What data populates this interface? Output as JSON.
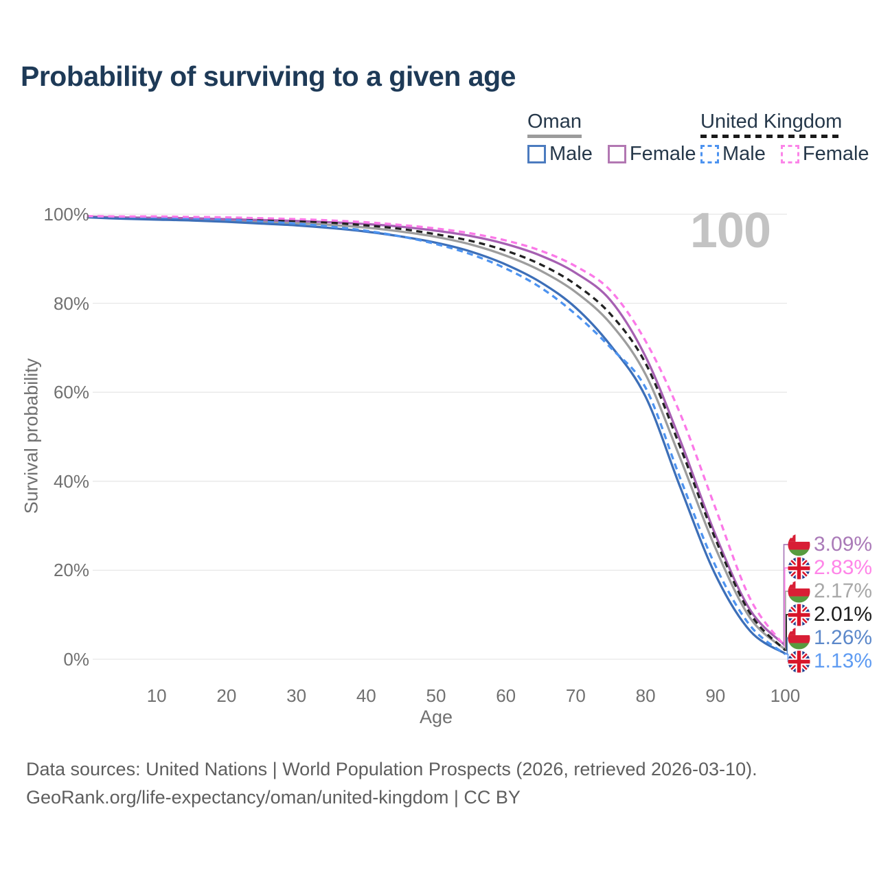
{
  "title": "Probability of surviving to a given age",
  "watermark": "100",
  "legend": {
    "groups": [
      {
        "id": "oman",
        "title": "Oman",
        "line_style": "solid",
        "line_color": "#9b9b9b",
        "items": [
          {
            "label": "Male",
            "style": "solid",
            "color": "#4b7bbf"
          },
          {
            "label": "Female",
            "style": "solid",
            "color": "#b277b2"
          }
        ]
      },
      {
        "id": "uk",
        "title": "United Kingdom",
        "line_style": "dashed",
        "line_color": "#1a1a1a",
        "items": [
          {
            "label": "Male",
            "style": "dashed",
            "color": "#4d93f0"
          },
          {
            "label": "Female",
            "style": "dashed",
            "color": "#fb85e8"
          }
        ]
      }
    ]
  },
  "axes": {
    "x_label": "Age",
    "y_label": "Survival probability",
    "x_ticks": [
      10,
      20,
      30,
      40,
      50,
      60,
      70,
      80,
      90,
      100
    ],
    "y_tick_values": [
      0,
      20,
      40,
      60,
      80,
      100
    ],
    "y_tick_labels": [
      "0%",
      "20%",
      "40%",
      "60%",
      "80%",
      "100%"
    ]
  },
  "chart_data": {
    "type": "line",
    "title": "Probability of surviving to a given age",
    "xlabel": "Age",
    "ylabel": "Survival probability",
    "xlim": [
      0,
      100
    ],
    "ylim": [
      0,
      100
    ],
    "grid": "horizontal",
    "legend_position": "top-right",
    "ages": [
      0,
      5,
      10,
      15,
      20,
      25,
      30,
      35,
      40,
      45,
      50,
      55,
      60,
      65,
      70,
      75,
      80,
      85,
      90,
      95,
      100
    ],
    "series": [
      {
        "key": "oman_total",
        "name": "Oman Total",
        "color": "#9d9d9d",
        "dash": "solid",
        "end_label": "2.17%",
        "values": [
          99.4,
          99.1,
          99.0,
          98.8,
          98.6,
          98.3,
          98.0,
          97.6,
          97.0,
          96.1,
          94.9,
          93.2,
          90.7,
          87.3,
          82.5,
          75.4,
          64.0,
          45.0,
          25.0,
          9.2,
          2.17
        ]
      },
      {
        "key": "oman_female",
        "name": "Oman Female",
        "color": "#a660b2",
        "dash": "solid",
        "end_label": "3.09%",
        "values": [
          99.5,
          99.3,
          99.2,
          99.1,
          98.9,
          98.7,
          98.5,
          98.2,
          97.8,
          97.2,
          96.3,
          95.1,
          93.3,
          90.7,
          86.8,
          80.6,
          68.0,
          49.0,
          28.0,
          11.0,
          3.09
        ]
      },
      {
        "key": "oman_male",
        "name": "Oman Male",
        "color": "#3d6fb8",
        "dash": "solid",
        "end_label": "1.26%",
        "values": [
          99.3,
          99.0,
          98.8,
          98.6,
          98.3,
          97.9,
          97.5,
          96.9,
          96.1,
          95.0,
          93.6,
          91.6,
          88.7,
          84.7,
          79.0,
          70.5,
          59.0,
          38.5,
          19.0,
          6.3,
          1.26
        ]
      },
      {
        "key": "uk_total",
        "name": "United Kingdom Total",
        "color": "#222222",
        "dash": "dashed",
        "end_label": "2.01%",
        "values": [
          99.5,
          99.4,
          99.4,
          99.2,
          99.0,
          98.8,
          98.5,
          98.1,
          97.5,
          96.7,
          95.5,
          94.0,
          91.8,
          88.7,
          84.2,
          77.5,
          66.5,
          47.5,
          27.0,
          10.2,
          2.01
        ]
      },
      {
        "key": "uk_male",
        "name": "United Kingdom Male",
        "color": "#4d93f0",
        "dash": "dashed",
        "end_label": "1.13%",
        "values": [
          99.5,
          99.4,
          99.3,
          99.1,
          98.8,
          98.4,
          97.9,
          97.2,
          96.3,
          95.0,
          93.3,
          91.0,
          87.8,
          83.5,
          77.5,
          70.0,
          61.0,
          40.5,
          21.0,
          7.5,
          1.13
        ]
      },
      {
        "key": "uk_female",
        "name": "United Kingdom Female",
        "color": "#fb79e8",
        "dash": "dashed",
        "end_label": "2.83%",
        "values": [
          99.6,
          99.5,
          99.5,
          99.4,
          99.3,
          99.1,
          98.9,
          98.6,
          98.2,
          97.6,
          96.8,
          95.7,
          94.1,
          91.8,
          88.3,
          82.8,
          71.5,
          55.0,
          34.0,
          13.5,
          2.83
        ]
      }
    ]
  },
  "end_labels": [
    {
      "flag": "oman",
      "value": "3.09%",
      "pct": 3.09,
      "color": "#aa7ab8"
    },
    {
      "flag": "uk",
      "value": "2.83%",
      "pct": 2.83,
      "color": "#ff85e8"
    },
    {
      "flag": "oman",
      "value": "2.17%",
      "pct": 2.17,
      "color": "#a8a8a8"
    },
    {
      "flag": "uk",
      "value": "2.01%",
      "pct": 2.01,
      "color": "#1c1c1c"
    },
    {
      "flag": "oman",
      "value": "1.26%",
      "pct": 1.26,
      "color": "#5c88ca"
    },
    {
      "flag": "uk",
      "value": "1.13%",
      "pct": 1.13,
      "color": "#5e9bf2"
    }
  ],
  "footer": {
    "line1": "Data sources: United Nations | World Population Prospects (2026, retrieved 2026-03-10).",
    "line2": "GeoRank.org/life-expectancy/oman/united-kingdom | CC BY"
  }
}
